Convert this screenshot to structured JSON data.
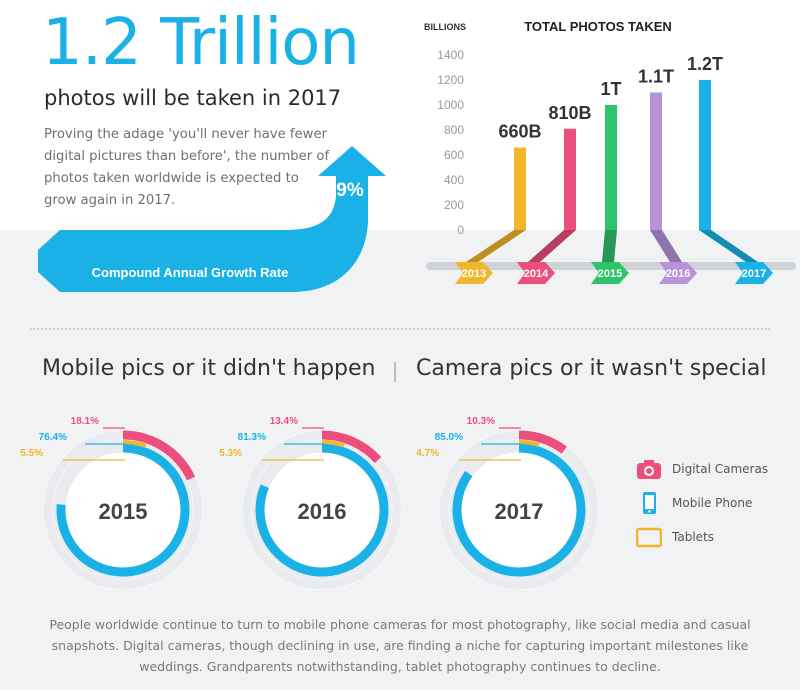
{
  "header": {
    "headline": "1.2 Trillion",
    "subhead": "photos will be taken in 2017",
    "intro": "Proving the adage 'you'll never have fewer digital pictures than before', the number of photos taken worldwide is expected to grow again in 2017.",
    "growth_value": "9%",
    "growth_label": "Compound Annual Growth Rate"
  },
  "colors": {
    "blue": "#1ab2e6",
    "yellow": "#f2b62c",
    "pink": "#ec4f7c",
    "green": "#2dc46a",
    "purple": "#b793dc",
    "band": "#f1f2f4"
  },
  "sections": {
    "left_title": "Mobile pics or it didn't happen",
    "right_title": "Camera pics or it wasn't special"
  },
  "legend": [
    {
      "label": "Digital Cameras",
      "icon": "camera-icon",
      "color": "#ec4f7c"
    },
    {
      "label": "Mobile Phone",
      "icon": "mobile-phone-icon",
      "color": "#1ab2e6"
    },
    {
      "label": "Tablets",
      "icon": "tablet-icon",
      "color": "#f2b62c"
    }
  ],
  "footer": "People worldwide continue to turn to mobile phone cameras for most photography, like social media and casual snapshots. Digital cameras, though declining in use, are finding a niche for capturing important milestones like weddings. Grandparents notwithstanding, tablet photography continues to decline.",
  "chart_data": [
    {
      "type": "bar",
      "title": "TOTAL PHOTOS TAKEN",
      "ylabel": "BILLIONS",
      "ylim": [
        0,
        1400
      ],
      "yticks": [
        0,
        200,
        400,
        600,
        800,
        1000,
        1200,
        1400
      ],
      "categories": [
        "2013",
        "2014",
        "2015",
        "2016",
        "2017"
      ],
      "values": [
        660,
        810,
        1000,
        1100,
        1200
      ],
      "data_labels": [
        "660B",
        "810B",
        "1T",
        "1.1T",
        "1.2T"
      ],
      "colors": [
        "#f2b62c",
        "#ec4f7c",
        "#2dc46a",
        "#b793dc",
        "#1ab2e6"
      ],
      "grid": false
    },
    {
      "type": "pie",
      "title": "2015",
      "categories": [
        "Digital Cameras",
        "Mobile Phone",
        "Tablets"
      ],
      "values": [
        18.1,
        76.4,
        5.5
      ],
      "labels": [
        "18.1%",
        "76.4%",
        "5.5%"
      ]
    },
    {
      "type": "pie",
      "title": "2016",
      "categories": [
        "Digital Cameras",
        "Mobile Phone",
        "Tablets"
      ],
      "values": [
        13.4,
        81.3,
        5.3
      ],
      "labels": [
        "13.4%",
        "81.3%",
        "5.3%"
      ]
    },
    {
      "type": "pie",
      "title": "2017",
      "categories": [
        "Digital Cameras",
        "Mobile Phone",
        "Tablets"
      ],
      "values": [
        10.3,
        85.0,
        4.7
      ],
      "labels": [
        "10.3%",
        "85.0%",
        "4.7%"
      ]
    }
  ]
}
